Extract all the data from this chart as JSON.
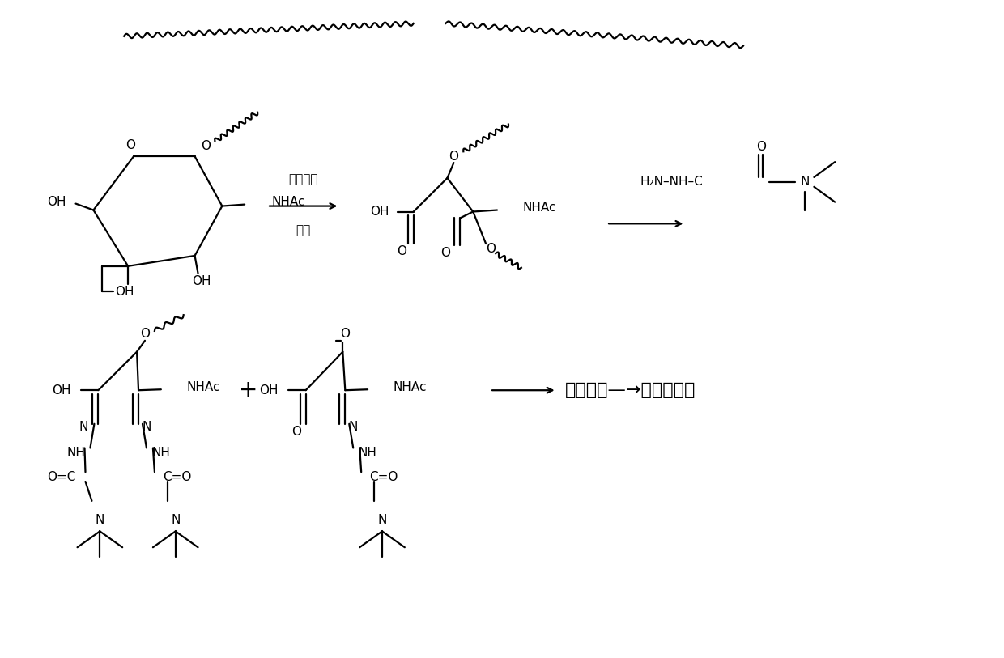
{
  "background": "#ffffff",
  "line_color": "#000000",
  "figsize": [
    12.4,
    8.13
  ],
  "dpi": 100,
  "lw": 1.6,
  "fs": 11,
  "labels": {
    "reagent1": "高碘酸钔",
    "reagent2": "加热",
    "NHAc": "NHAc",
    "OH": "OH",
    "O": "O",
    "N": "N",
    "NH": "NH",
    "H2N_NH_C": "H₂N–NH–C",
    "final_text": "质谱分析—→数据库检索",
    "plus": "+",
    "C_eq_O": "C=O",
    "O_eq_C": "O=C"
  }
}
